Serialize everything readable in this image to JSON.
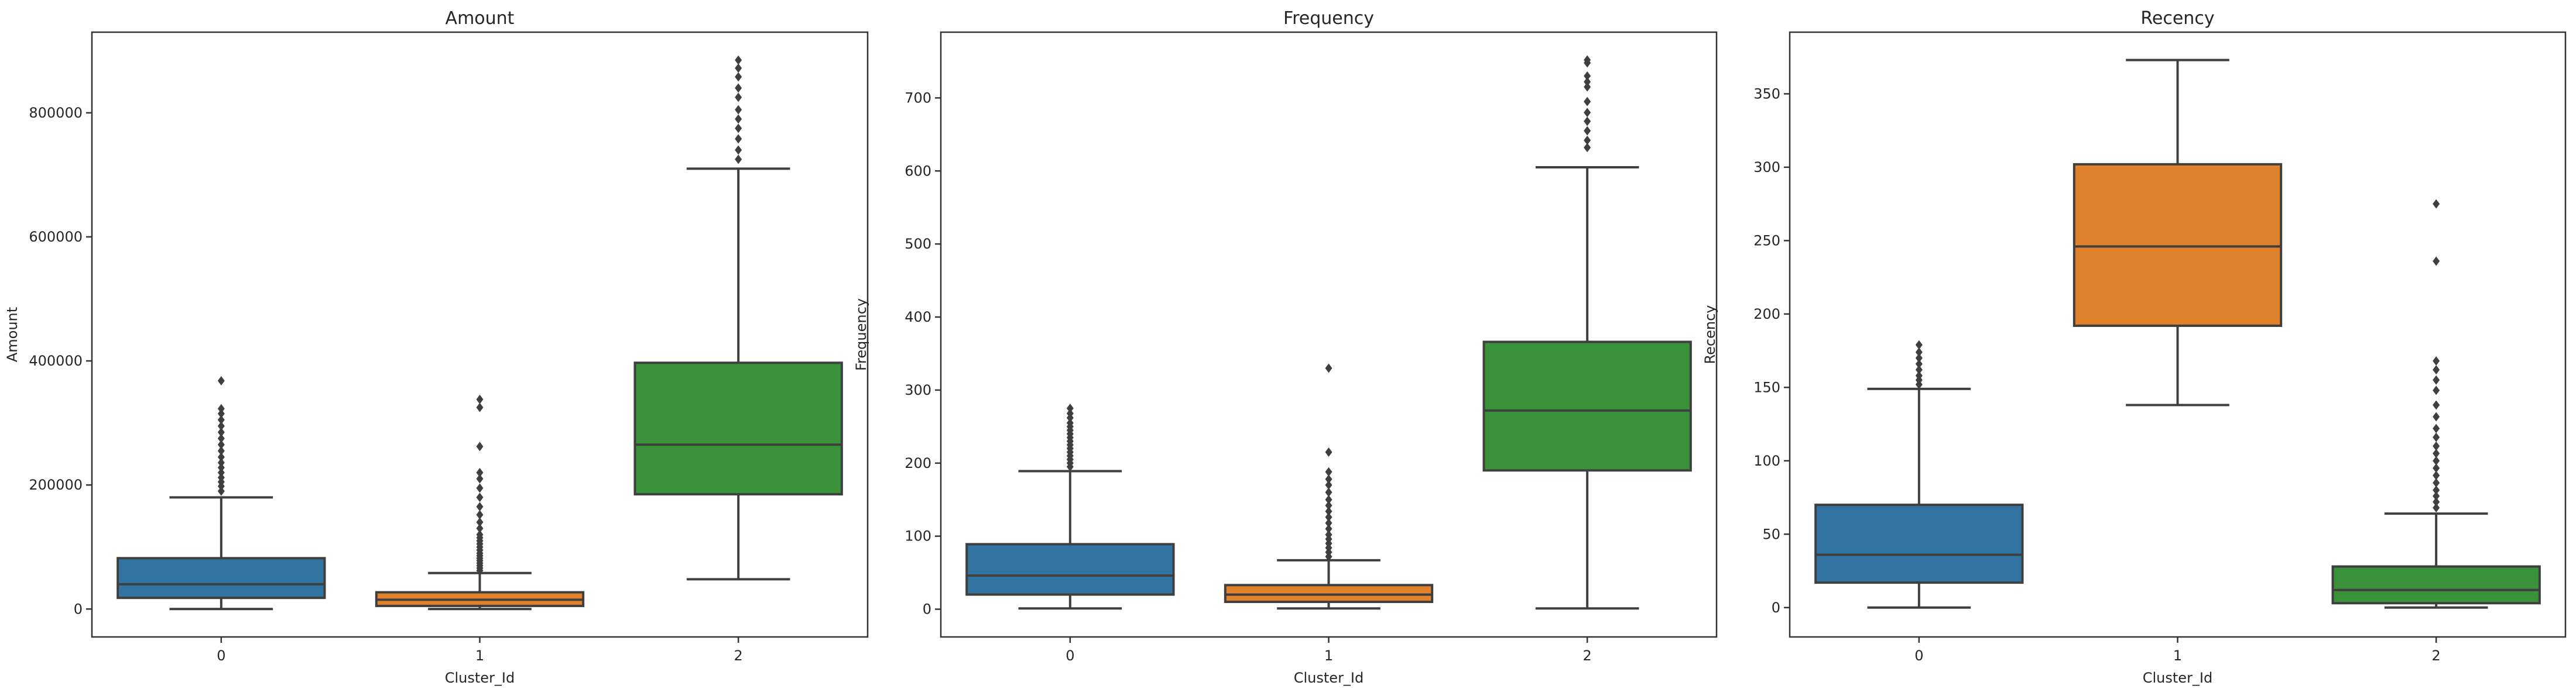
{
  "chart_data": [
    {
      "type": "box",
      "title": "Amount",
      "xlabel": "Cluster_Id",
      "ylabel": "Amount",
      "categories": [
        "0",
        "1",
        "2"
      ],
      "ylim": [
        -45000,
        930000
      ],
      "yticks": [
        0,
        200000,
        400000,
        600000,
        800000
      ],
      "ytick_labels": [
        "0",
        "200000",
        "400000",
        "600000",
        "800000"
      ],
      "colors": [
        "#3274a1",
        "#e1812c",
        "#3a923a"
      ],
      "boxes": [
        {
          "whisker_low": 0,
          "q1": 18000,
          "median": 40000,
          "q3": 82000,
          "whisker_high": 180000,
          "fliers": [
            190000,
            198000,
            205000,
            212000,
            220000,
            228000,
            236000,
            245000,
            255000,
            265000,
            275000,
            285000,
            295000,
            305000,
            315000,
            323000,
            368000
          ]
        },
        {
          "whisker_low": 0,
          "q1": 5000,
          "median": 15000,
          "q3": 27000,
          "whisker_high": 58000,
          "fliers": [
            62000,
            66000,
            70000,
            74000,
            78000,
            82000,
            86000,
            90000,
            95000,
            100000,
            105000,
            110000,
            115000,
            120000,
            130000,
            140000,
            152000,
            165000,
            180000,
            195000,
            210000,
            220000,
            262000,
            325000,
            338000
          ]
        },
        {
          "whisker_low": 48000,
          "q1": 185000,
          "median": 265000,
          "q3": 397000,
          "whisker_high": 710000,
          "fliers": [
            725000,
            740000,
            758000,
            775000,
            790000,
            805000,
            825000,
            840000,
            858000,
            872000,
            885000
          ]
        }
      ]
    },
    {
      "type": "box",
      "title": "Frequency",
      "xlabel": "Cluster_Id",
      "ylabel": "Frequency",
      "categories": [
        "0",
        "1",
        "2"
      ],
      "ylim": [
        -38,
        790
      ],
      "yticks": [
        0,
        100,
        200,
        300,
        400,
        500,
        600,
        700
      ],
      "ytick_labels": [
        "0",
        "100",
        "200",
        "300",
        "400",
        "500",
        "600",
        "700"
      ],
      "colors": [
        "#3274a1",
        "#e1812c",
        "#3a923a"
      ],
      "boxes": [
        {
          "whisker_low": 1,
          "q1": 20,
          "median": 46,
          "q3": 89,
          "whisker_high": 189,
          "fliers": [
            195,
            200,
            205,
            210,
            215,
            220,
            225,
            230,
            235,
            240,
            245,
            250,
            255,
            262,
            268,
            275
          ]
        },
        {
          "whisker_low": 1,
          "q1": 10,
          "median": 20,
          "q3": 33,
          "whisker_high": 67,
          "fliers": [
            72,
            78,
            84,
            90,
            96,
            102,
            110,
            118,
            126,
            134,
            142,
            150,
            160,
            170,
            178,
            188,
            215,
            330
          ]
        },
        {
          "whisker_low": 1,
          "q1": 190,
          "median": 272,
          "q3": 366,
          "whisker_high": 605,
          "fliers": [
            632,
            642,
            655,
            668,
            680,
            695,
            715,
            722,
            730,
            748,
            752
          ]
        }
      ]
    },
    {
      "type": "box",
      "title": "Recency",
      "xlabel": "Cluster_Id",
      "ylabel": "Recency",
      "categories": [
        "0",
        "1",
        "2"
      ],
      "ylim": [
        -20,
        392
      ],
      "yticks": [
        0,
        50,
        100,
        150,
        200,
        250,
        300,
        350
      ],
      "ytick_labels": [
        "0",
        "50",
        "100",
        "150",
        "200",
        "250",
        "300",
        "350"
      ],
      "colors": [
        "#3274a1",
        "#e1812c",
        "#3a923a"
      ],
      "boxes": [
        {
          "whisker_low": 0,
          "q1": 17,
          "median": 36,
          "q3": 70,
          "whisker_high": 149,
          "fliers": [
            152,
            155,
            158,
            162,
            166,
            170,
            174,
            179
          ]
        },
        {
          "whisker_low": 138,
          "q1": 192,
          "median": 246,
          "q3": 302,
          "whisker_high": 373,
          "fliers": []
        },
        {
          "whisker_low": 0,
          "q1": 3,
          "median": 12,
          "q3": 28,
          "whisker_high": 64,
          "fliers": [
            68,
            72,
            76,
            80,
            85,
            90,
            95,
            100,
            105,
            110,
            116,
            122,
            130,
            138,
            148,
            155,
            162,
            168,
            236,
            275
          ]
        }
      ]
    }
  ]
}
